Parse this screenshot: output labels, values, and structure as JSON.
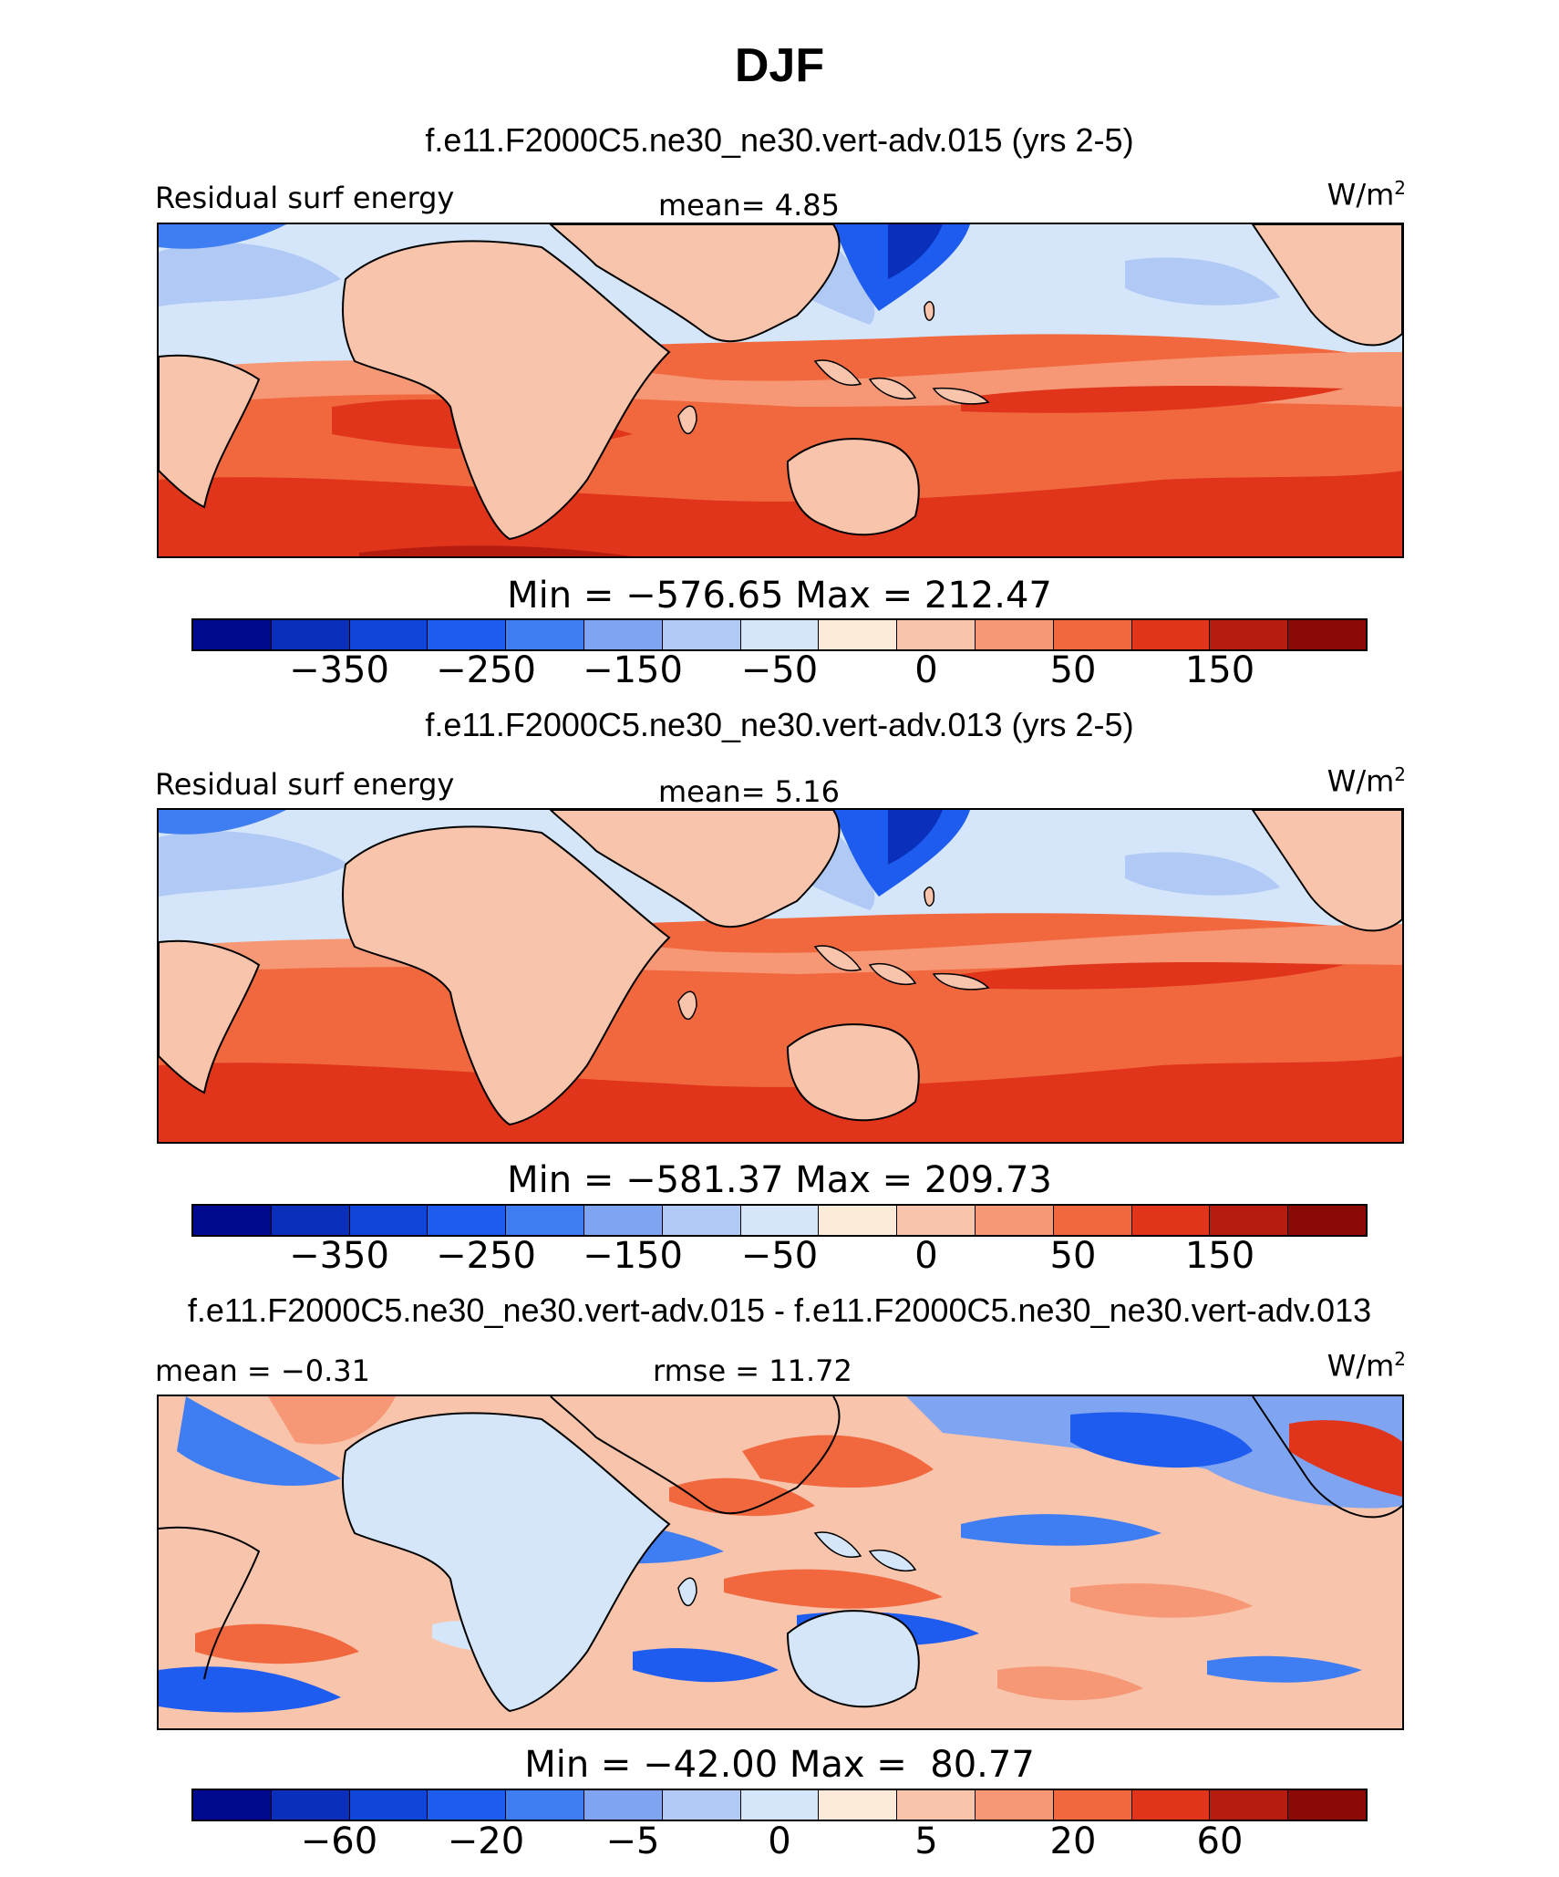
{
  "figure": {
    "season": "DJF"
  },
  "colors": [
    "#000a8f",
    "#0a2fba",
    "#0f45d9",
    "#1e5cf0",
    "#3f7ef2",
    "#7ea4f2",
    "#b0c9f5",
    "#d6e6fa",
    "#fdebd9",
    "#f9c4ac",
    "#f69876",
    "#f1683f",
    "#e0341b",
    "#b71c10",
    "#8c0a05"
  ],
  "panels": [
    {
      "case_title": "f.e11.F2000C5.ne30_ne30.vert-adv.015 (yrs 2-5)",
      "left_label": "Residual surf energy",
      "center_label": "mean=   4.85",
      "units": "W/m",
      "units_sup": "2",
      "min_max": "Min = −576.65 Max = 212.47",
      "colorbar_ticks": [
        "−350",
        "−250",
        "−150",
        "−50",
        "0",
        "50",
        "150"
      ]
    },
    {
      "case_title": "f.e11.F2000C5.ne30_ne30.vert-adv.013 (yrs 2-5)",
      "left_label": "Residual surf energy",
      "center_label": "mean=   5.16",
      "units": "W/m",
      "units_sup": "2",
      "min_max": "Min = −581.37 Max = 209.73",
      "colorbar_ticks": [
        "−350",
        "−250",
        "−150",
        "−50",
        "0",
        "50",
        "150"
      ]
    },
    {
      "case_title": "f.e11.F2000C5.ne30_ne30.vert-adv.015 - f.e11.F2000C5.ne30_ne30.vert-adv.013",
      "left_label": "mean = −0.31",
      "center_label": "rmse =  11.72",
      "units": "W/m",
      "units_sup": "2",
      "min_max": "Min = −42.00 Max =  80.77",
      "colorbar_ticks": [
        "−60",
        "−20",
        "−5",
        "0",
        "5",
        "20",
        "60"
      ]
    }
  ]
}
